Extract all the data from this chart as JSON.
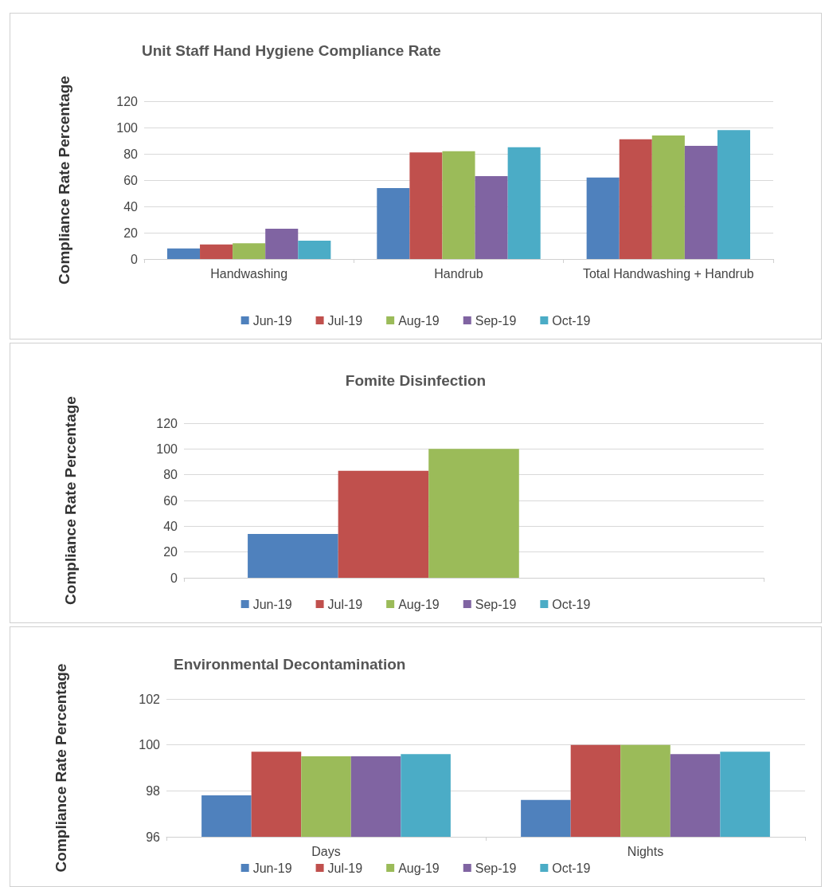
{
  "chart_data": [
    {
      "type": "bar",
      "title": "Unit Staff Hand Hygiene Compliance Rate",
      "ylabel": "Compliance Rate Percentage",
      "categories": [
        "Handwashing",
        "Handrub",
        "Total Handwashing + Handrub"
      ],
      "series": [
        {
          "name": "Jun-19",
          "color": "#4f81bd",
          "values": [
            8,
            54,
            62
          ]
        },
        {
          "name": "Jul-19",
          "color": "#c0504d",
          "values": [
            11,
            81,
            91
          ]
        },
        {
          "name": "Aug-19",
          "color": "#9bbb59",
          "values": [
            12,
            82,
            94
          ]
        },
        {
          "name": "Sep-19",
          "color": "#8064a2",
          "values": [
            23,
            63,
            86
          ]
        },
        {
          "name": "Oct-19",
          "color": "#4bacc6",
          "values": [
            14,
            85,
            98
          ]
        }
      ],
      "ylim": [
        0,
        120
      ],
      "yticks": [
        0,
        20,
        40,
        60,
        80,
        100,
        120
      ],
      "grid": "y",
      "legend": "bottom"
    },
    {
      "type": "bar",
      "title": "Fomite Disinfection",
      "ylabel": "Compliance Rate Percentage",
      "categories": [
        null
      ],
      "series": [
        {
          "name": "Jun-19",
          "color": "#4f81bd",
          "values": [
            34
          ]
        },
        {
          "name": "Jul-19",
          "color": "#c0504d",
          "values": [
            83
          ]
        },
        {
          "name": "Aug-19",
          "color": "#9bbb59",
          "values": [
            100
          ]
        },
        {
          "name": "Sep-19",
          "color": "#8064a2",
          "values": [
            null
          ]
        },
        {
          "name": "Oct-19",
          "color": "#4bacc6",
          "values": [
            null
          ]
        }
      ],
      "ylim": [
        0,
        120
      ],
      "yticks": [
        0,
        20,
        40,
        60,
        80,
        100,
        120
      ],
      "grid": "y",
      "legend": "bottom"
    },
    {
      "type": "bar",
      "title": "Environmental Decontamination",
      "ylabel": "Compliance Rate Percentage",
      "categories": [
        "Days",
        "Nights"
      ],
      "series": [
        {
          "name": "Jun-19",
          "color": "#4f81bd",
          "values": [
            97.8,
            97.6
          ]
        },
        {
          "name": "Jul-19",
          "color": "#c0504d",
          "values": [
            99.7,
            100
          ]
        },
        {
          "name": "Aug-19",
          "color": "#9bbb59",
          "values": [
            99.5,
            100
          ]
        },
        {
          "name": "Sep-19",
          "color": "#8064a2",
          "values": [
            99.5,
            99.6
          ]
        },
        {
          "name": "Oct-19",
          "color": "#4bacc6",
          "values": [
            99.6,
            99.7
          ]
        }
      ],
      "ylim": [
        96,
        102
      ],
      "yticks": [
        96,
        98,
        100,
        102
      ],
      "grid": "y",
      "legend": "bottom"
    }
  ]
}
